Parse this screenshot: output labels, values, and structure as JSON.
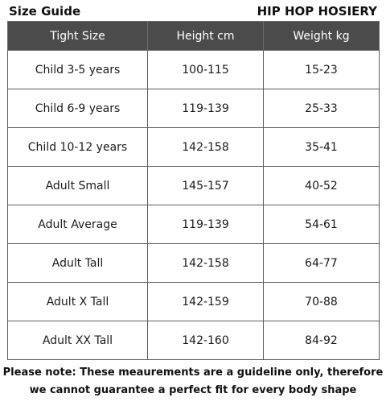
{
  "header": {
    "title": "Size Guide",
    "brand": "HIP HOP HOSIERY"
  },
  "table": {
    "columns": [
      "Tight Size",
      "Height cm",
      "Weight kg"
    ],
    "rows": [
      [
        "Child 3-5 years",
        "100-115",
        "15-23"
      ],
      [
        "Child 6-9 years",
        "119-139",
        "25-33"
      ],
      [
        "Child 10-12 years",
        "142-158",
        "35-41"
      ],
      [
        "Adult Small",
        "145-157",
        "40-52"
      ],
      [
        "Adult Average",
        "119-139",
        "54-61"
      ],
      [
        "Adult Tall",
        "142-158",
        "64-77"
      ],
      [
        "Adult X Tall",
        "142-159",
        "70-88"
      ],
      [
        "Adult XX Tall",
        "142-160",
        "84-92"
      ]
    ]
  },
  "note": {
    "line1": "Please note: These meaurements are a guideline only, therefore",
    "line2": "we cannot guarantee a perfect fit for every body shape"
  },
  "colors": {
    "header_bg": "#4b4b4b",
    "header_text": "#ffffff",
    "border": "#5c5c5c"
  }
}
